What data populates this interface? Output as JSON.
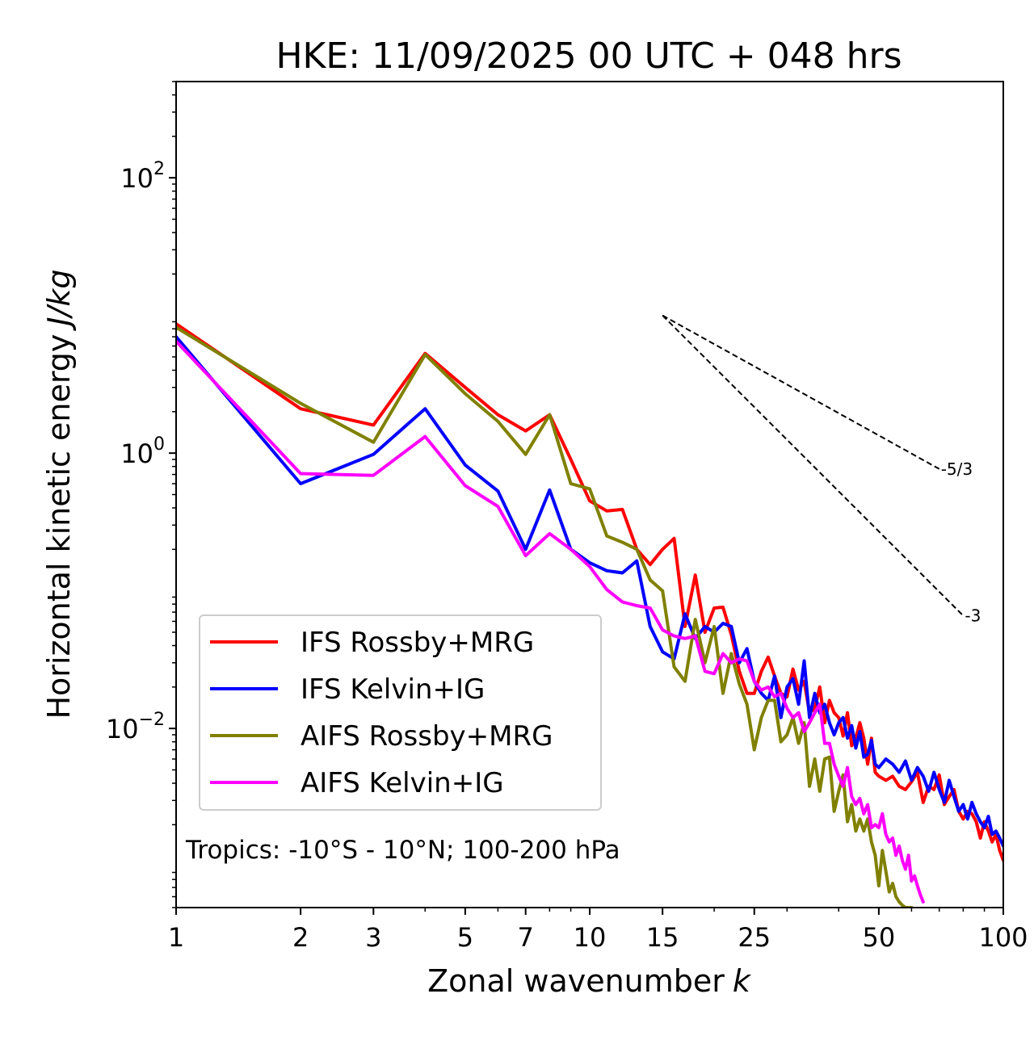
{
  "chart_data": {
    "type": "line",
    "title": "HKE: 11/09/2025 00 UTC + 048 hrs",
    "xlabel": "Zonal wavenumber",
    "xlabel_var": "k",
    "ylabel": "Horizontal kinetic energy",
    "ylabel_units": "J/kg",
    "xscale": "log",
    "yscale": "log",
    "xlim": [
      1,
      100
    ],
    "ylim": [
      0.0005,
      500
    ],
    "x_ticks": [
      1,
      2,
      3,
      5,
      7,
      10,
      15,
      25,
      50,
      100
    ],
    "x_tick_labels": [
      "1",
      "2",
      "3",
      "5",
      "7",
      "10",
      "15",
      "25",
      "50",
      "100"
    ],
    "y_ticks": [
      0.01,
      1,
      100
    ],
    "y_tick_labels": [
      {
        "base": "10",
        "exp": "−2"
      },
      {
        "base": "10",
        "exp": "0"
      },
      {
        "base": "10",
        "exp": "2"
      }
    ],
    "annotation": "Tropics: -10°S - 10°N; 100-200 hPa",
    "legend_position": "lower-left",
    "reference_slopes": [
      {
        "label": "-5/3",
        "exponent": -1.6667,
        "x_start": 15,
        "y_start": 10,
        "x_end": 70
      },
      {
        "label": "-3",
        "exponent": -3,
        "x_start": 15,
        "y_start": 10,
        "x_end": 80
      }
    ],
    "series": [
      {
        "name": "IFS Rossby+MRG",
        "color": "#ff0000",
        "x": [
          1,
          2,
          3,
          4,
          5,
          6,
          7,
          8,
          9,
          10,
          11,
          12,
          13,
          14,
          15,
          16,
          17,
          18,
          19,
          20,
          21,
          22,
          23,
          24,
          25,
          26,
          27,
          28,
          29,
          30,
          31,
          32,
          33,
          34,
          35,
          36,
          37,
          38,
          39,
          40,
          41,
          42,
          43,
          44,
          45,
          46,
          47,
          48,
          49,
          50,
          52,
          54,
          56,
          58,
          60,
          62,
          64,
          66,
          68,
          70,
          72,
          74,
          76,
          78,
          80,
          82,
          84,
          86,
          88,
          90,
          92,
          94,
          96,
          98,
          100
        ],
        "values": [
          8.7,
          2.1,
          1.6,
          5.3,
          3.0,
          1.9,
          1.45,
          1.9,
          0.9,
          0.45,
          0.38,
          0.39,
          0.2,
          0.155,
          0.2,
          0.24,
          0.055,
          0.13,
          0.05,
          0.075,
          0.076,
          0.048,
          0.026,
          0.018,
          0.018,
          0.026,
          0.033,
          0.024,
          0.018,
          0.017,
          0.027,
          0.019,
          0.022,
          0.013,
          0.014,
          0.02,
          0.011,
          0.016,
          0.013,
          0.012,
          0.0088,
          0.013,
          0.0075,
          0.0085,
          0.011,
          0.0085,
          0.0055,
          0.0085,
          0.0048,
          0.0045,
          0.0042,
          0.0045,
          0.0038,
          0.0036,
          0.0041,
          0.0048,
          0.0029,
          0.0038,
          0.0036,
          0.0046,
          0.0028,
          0.0032,
          0.0036,
          0.0025,
          0.0022,
          0.0025,
          0.0024,
          0.0021,
          0.0016,
          0.0021,
          0.0018,
          0.0015,
          0.0017,
          0.0013,
          0.0011
        ]
      },
      {
        "name": "IFS Kelvin+IG",
        "color": "#0000ff",
        "x": [
          1,
          2,
          3,
          4,
          5,
          6,
          7,
          8,
          9,
          10,
          11,
          12,
          13,
          14,
          15,
          16,
          17,
          18,
          19,
          20,
          21,
          22,
          23,
          24,
          25,
          26,
          27,
          28,
          29,
          30,
          31,
          32,
          33,
          34,
          35,
          36,
          37,
          38,
          39,
          40,
          41,
          42,
          43,
          44,
          45,
          46,
          47,
          48,
          49,
          50,
          52,
          54,
          56,
          58,
          60,
          62,
          64,
          66,
          68,
          70,
          72,
          74,
          76,
          78,
          80,
          82,
          84,
          86,
          88,
          90,
          92,
          94,
          96,
          98,
          100
        ],
        "values": [
          7.0,
          0.6,
          0.98,
          2.1,
          0.82,
          0.53,
          0.2,
          0.54,
          0.2,
          0.16,
          0.14,
          0.135,
          0.165,
          0.055,
          0.036,
          0.032,
          0.068,
          0.045,
          0.055,
          0.05,
          0.058,
          0.055,
          0.03,
          0.038,
          0.022,
          0.018,
          0.016,
          0.024,
          0.012,
          0.02,
          0.023,
          0.015,
          0.031,
          0.012,
          0.018,
          0.013,
          0.015,
          0.011,
          0.009,
          0.011,
          0.012,
          0.0085,
          0.0105,
          0.0072,
          0.0095,
          0.0062,
          0.0065,
          0.0082,
          0.0055,
          0.0052,
          0.006,
          0.0055,
          0.0048,
          0.0058,
          0.0042,
          0.0052,
          0.0045,
          0.0035,
          0.0048,
          0.0036,
          0.0029,
          0.0042,
          0.0032,
          0.0025,
          0.0028,
          0.0022,
          0.0029,
          0.0024,
          0.0021,
          0.0019,
          0.0023,
          0.0017,
          0.0018,
          0.0016,
          0.0014
        ]
      },
      {
        "name": "AIFS Rossby+MRG",
        "color": "#808000",
        "x": [
          1,
          2,
          3,
          4,
          5,
          6,
          7,
          8,
          9,
          10,
          11,
          12,
          13,
          14,
          15,
          16,
          17,
          18,
          19,
          20,
          21,
          22,
          23,
          24,
          25,
          26,
          27,
          28,
          29,
          30,
          31,
          32,
          33,
          34,
          35,
          36,
          37,
          38,
          39,
          40,
          41,
          42,
          43,
          44,
          45,
          46,
          47,
          48,
          49,
          50,
          51,
          52,
          53,
          54,
          55,
          56,
          57,
          58,
          59,
          60
        ],
        "values": [
          8.2,
          2.3,
          1.2,
          5.2,
          2.7,
          1.7,
          0.98,
          1.9,
          0.6,
          0.55,
          0.25,
          0.225,
          0.2,
          0.12,
          0.1,
          0.028,
          0.022,
          0.062,
          0.03,
          0.055,
          0.018,
          0.035,
          0.021,
          0.015,
          0.007,
          0.012,
          0.016,
          0.016,
          0.008,
          0.009,
          0.012,
          0.0078,
          0.011,
          0.0038,
          0.006,
          0.0035,
          0.006,
          0.0062,
          0.0025,
          0.0035,
          0.0046,
          0.0021,
          0.0028,
          0.0018,
          0.0022,
          0.0018,
          0.0022,
          0.0015,
          0.0012,
          0.00072,
          0.0013,
          0.00092,
          0.00065,
          0.00075,
          0.0006,
          0.00055,
          0.00052,
          0.0005,
          0.0005,
          0.0005
        ]
      },
      {
        "name": "AIFS Kelvin+IG",
        "color": "#ff00ff",
        "x": [
          1,
          2,
          3,
          4,
          5,
          6,
          7,
          8,
          9,
          10,
          11,
          12,
          13,
          14,
          15,
          16,
          17,
          18,
          19,
          20,
          21,
          22,
          23,
          24,
          25,
          26,
          27,
          28,
          29,
          30,
          31,
          32,
          33,
          34,
          35,
          36,
          37,
          38,
          39,
          40,
          41,
          42,
          43,
          44,
          45,
          46,
          47,
          48,
          49,
          50,
          51,
          52,
          53,
          54,
          55,
          56,
          57,
          58,
          59,
          60,
          61,
          62,
          63,
          64
        ],
        "values": [
          6.5,
          0.71,
          0.69,
          1.32,
          0.58,
          0.41,
          0.18,
          0.26,
          0.2,
          0.15,
          0.102,
          0.083,
          0.078,
          0.075,
          0.052,
          0.047,
          0.045,
          0.047,
          0.026,
          0.025,
          0.035,
          0.03,
          0.032,
          0.031,
          0.022,
          0.019,
          0.02,
          0.017,
          0.018,
          0.014,
          0.012,
          0.013,
          0.0095,
          0.011,
          0.013,
          0.015,
          0.0078,
          0.0078,
          0.0055,
          0.0045,
          0.0038,
          0.0052,
          0.0032,
          0.0028,
          0.0031,
          0.0024,
          0.0028,
          0.0019,
          0.002,
          0.0019,
          0.0024,
          0.0017,
          0.0015,
          0.0016,
          0.0012,
          0.0014,
          0.0011,
          0.00095,
          0.0012,
          0.00078,
          0.00085,
          0.00072,
          0.00062,
          0.00055
        ]
      }
    ]
  }
}
